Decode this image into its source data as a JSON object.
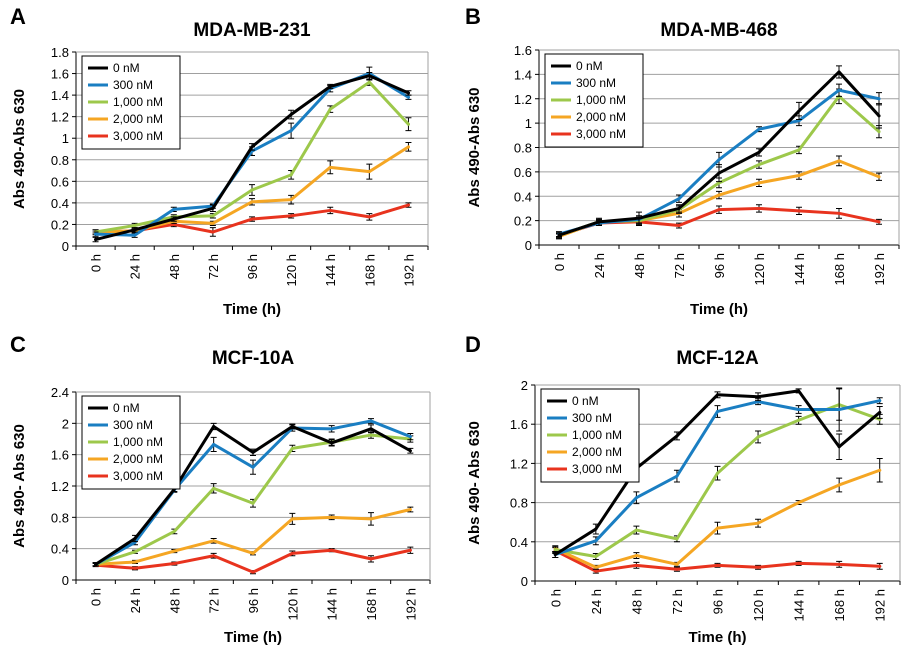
{
  "colors": {
    "0 nM": "#000000",
    "300 nM": "#1a7ec2",
    "1,000 nM": "#9dc84b",
    "2,000 nM": "#f5a623",
    "3,000 nM": "#e8331e"
  },
  "chart_data": [
    {
      "type": "line",
      "panel_letter": "A",
      "title": "MDA-MB-231",
      "xlabel": "Time (h)",
      "ylabel": "Abs 490-Abs 630",
      "categories": [
        "0 h",
        "24 h",
        "48 h",
        "72 h",
        "96 h",
        "120 h",
        "144 h",
        "168 h",
        "192 h"
      ],
      "ylim": [
        0,
        1.8
      ],
      "yticks": [
        0,
        0.2,
        0.4,
        0.6,
        0.8,
        1,
        1.2,
        1.4,
        1.6,
        1.8
      ],
      "ytick_labels": [
        "0",
        "0.2",
        "0.4",
        "0.6",
        "0.8",
        "1",
        "1.2",
        "1.4",
        "1.6",
        "1.8"
      ],
      "grid": true,
      "legend_position": "top-left",
      "series": [
        {
          "name": "0 nM",
          "values": [
            0.06,
            0.15,
            0.25,
            0.35,
            0.92,
            1.22,
            1.48,
            1.58,
            1.42
          ],
          "errors": [
            0.02,
            0.02,
            0.02,
            0.03,
            0.03,
            0.04,
            0.02,
            0.03,
            0.02
          ]
        },
        {
          "name": "300 nM",
          "values": [
            0.11,
            0.1,
            0.34,
            0.37,
            0.88,
            1.07,
            1.46,
            1.6,
            1.38
          ],
          "errors": [
            0.02,
            0.02,
            0.02,
            0.02,
            0.04,
            0.07,
            0.03,
            0.06,
            0.02
          ]
        },
        {
          "name": "1,000 nM",
          "values": [
            0.13,
            0.19,
            0.27,
            0.28,
            0.52,
            0.66,
            1.27,
            1.52,
            1.13
          ],
          "errors": [
            0.02,
            0.02,
            0.02,
            0.02,
            0.05,
            0.04,
            0.03,
            0.03,
            0.06
          ]
        },
        {
          "name": "2,000 nM",
          "values": [
            0.13,
            0.14,
            0.23,
            0.21,
            0.41,
            0.43,
            0.73,
            0.69,
            0.92
          ],
          "errors": [
            0.02,
            0.02,
            0.02,
            0.02,
            0.03,
            0.04,
            0.06,
            0.07,
            0.04
          ]
        },
        {
          "name": "3,000 nM",
          "values": [
            0.13,
            0.14,
            0.2,
            0.13,
            0.25,
            0.28,
            0.33,
            0.27,
            0.38
          ],
          "errors": [
            0.02,
            0.02,
            0.02,
            0.04,
            0.02,
            0.02,
            0.03,
            0.03,
            0.02
          ]
        }
      ]
    },
    {
      "type": "line",
      "panel_letter": "B",
      "title": "MDA-MB-468",
      "xlabel": "Time (h)",
      "ylabel": "Abs 490-Abs 630",
      "categories": [
        "0 h",
        "24 h",
        "48 h",
        "72 h",
        "96 h",
        "120 h",
        "144 h",
        "168 h",
        "192 h"
      ],
      "ylim": [
        0,
        1.6
      ],
      "yticks": [
        0,
        0.2,
        0.4,
        0.6,
        0.8,
        1,
        1.2,
        1.4,
        1.6
      ],
      "ytick_labels": [
        "0",
        "0.2",
        "0.4",
        "0.6",
        "0.8",
        "1",
        "1.2",
        "1.4",
        "1.6"
      ],
      "grid": true,
      "legend_position": "top-left",
      "series": [
        {
          "name": "0 nM",
          "values": [
            0.08,
            0.19,
            0.22,
            0.3,
            0.59,
            0.76,
            1.1,
            1.42,
            1.06
          ],
          "errors": [
            0.02,
            0.03,
            0.05,
            0.03,
            0.07,
            0.03,
            0.07,
            0.05,
            0.1
          ]
        },
        {
          "name": "300 nM",
          "values": [
            0.09,
            0.18,
            0.21,
            0.38,
            0.7,
            0.95,
            1.02,
            1.27,
            1.2
          ],
          "errors": [
            0.02,
            0.02,
            0.03,
            0.03,
            0.06,
            0.02,
            0.04,
            0.05,
            0.05
          ]
        },
        {
          "name": "1,000 nM",
          "values": [
            0.08,
            0.19,
            0.2,
            0.29,
            0.51,
            0.66,
            0.78,
            1.22,
            0.93
          ],
          "errors": [
            0.02,
            0.02,
            0.03,
            0.03,
            0.04,
            0.03,
            0.03,
            0.06,
            0.05
          ]
        },
        {
          "name": "2,000 nM",
          "values": [
            0.07,
            0.19,
            0.2,
            0.26,
            0.41,
            0.51,
            0.57,
            0.69,
            0.56
          ],
          "errors": [
            0.02,
            0.02,
            0.02,
            0.03,
            0.03,
            0.03,
            0.03,
            0.04,
            0.03
          ]
        },
        {
          "name": "3,000 nM",
          "values": [
            0.08,
            0.18,
            0.19,
            0.16,
            0.29,
            0.3,
            0.28,
            0.26,
            0.19
          ],
          "errors": [
            0.02,
            0.02,
            0.03,
            0.02,
            0.03,
            0.03,
            0.03,
            0.04,
            0.02
          ]
        }
      ]
    },
    {
      "type": "line",
      "panel_letter": "C",
      "title": "MCF-10A",
      "xlabel": "Time (h)",
      "ylabel": "Abs 490- Abs 630",
      "categories": [
        "0 h",
        "24 h",
        "48 h",
        "72 h",
        "96 h",
        "120 h",
        "144 h",
        "168 h",
        "192 h"
      ],
      "ylim": [
        0,
        2.4
      ],
      "yticks": [
        0,
        0.4,
        0.8,
        1.2,
        1.6,
        2,
        2.4
      ],
      "ytick_labels": [
        "0",
        "0.4",
        "0.8",
        "1.2",
        "1.6",
        "2",
        "2.4"
      ],
      "grid": true,
      "legend_position": "top-left",
      "series": [
        {
          "name": "0 nM",
          "values": [
            0.2,
            0.53,
            1.16,
            1.96,
            1.63,
            1.96,
            1.75,
            1.93,
            1.65
          ],
          "errors": [
            0.02,
            0.04,
            0.03,
            0.04,
            0.04,
            0.03,
            0.04,
            0.05,
            0.03
          ]
        },
        {
          "name": "300 nM",
          "values": [
            0.2,
            0.48,
            1.15,
            1.73,
            1.44,
            1.94,
            1.93,
            2.03,
            1.83
          ],
          "errors": [
            0.02,
            0.03,
            0.03,
            0.09,
            0.09,
            0.04,
            0.04,
            0.03,
            0.04
          ]
        },
        {
          "name": "1,000 nM",
          "values": [
            0.2,
            0.36,
            0.62,
            1.17,
            0.98,
            1.68,
            1.76,
            1.85,
            1.8
          ],
          "errors": [
            0.02,
            0.02,
            0.03,
            0.06,
            0.05,
            0.04,
            0.04,
            0.04,
            0.04
          ]
        },
        {
          "name": "2,000 nM",
          "values": [
            0.2,
            0.23,
            0.37,
            0.5,
            0.34,
            0.78,
            0.8,
            0.78,
            0.9
          ],
          "errors": [
            0.02,
            0.02,
            0.02,
            0.03,
            0.02,
            0.07,
            0.03,
            0.08,
            0.03
          ]
        },
        {
          "name": "3,000 nM",
          "values": [
            0.19,
            0.15,
            0.21,
            0.31,
            0.1,
            0.34,
            0.38,
            0.27,
            0.38
          ],
          "errors": [
            0.02,
            0.02,
            0.02,
            0.03,
            0.02,
            0.03,
            0.02,
            0.04,
            0.04
          ]
        }
      ]
    },
    {
      "type": "line",
      "panel_letter": "D",
      "title": "MCF-12A",
      "xlabel": "Time (h)",
      "ylabel": "Abs 490- Abs 630",
      "categories": [
        "0 h",
        "24 h",
        "48 h",
        "72 h",
        "96 h",
        "120 h",
        "144 h",
        "168 h",
        "192 h"
      ],
      "ylim": [
        0,
        2
      ],
      "yticks": [
        0,
        0.4,
        0.8,
        1.2,
        1.6,
        2
      ],
      "ytick_labels": [
        "0",
        "0.4",
        "0.8",
        "1.2",
        "1.6",
        "2"
      ],
      "grid": true,
      "legend_position": "top-left",
      "series": [
        {
          "name": "0 nM",
          "values": [
            0.27,
            0.53,
            1.15,
            1.48,
            1.9,
            1.88,
            1.94,
            1.37,
            1.72
          ],
          "errors": [
            0.03,
            0.05,
            0.08,
            0.04,
            0.03,
            0.04,
            0.02,
            0.13,
            0.06
          ]
        },
        {
          "name": "300 nM",
          "values": [
            0.27,
            0.41,
            0.85,
            1.07,
            1.73,
            1.83,
            1.75,
            1.75,
            1.84
          ],
          "errors": [
            0.03,
            0.04,
            0.06,
            0.06,
            0.06,
            0.03,
            0.04,
            0.22,
            0.03
          ]
        },
        {
          "name": "1,000 nM",
          "values": [
            0.32,
            0.25,
            0.52,
            0.43,
            1.1,
            1.47,
            1.64,
            1.8,
            1.65
          ],
          "errors": [
            0.03,
            0.03,
            0.04,
            0.03,
            0.07,
            0.06,
            0.04,
            0.16,
            0.05
          ]
        },
        {
          "name": "2,000 nM",
          "values": [
            0.33,
            0.14,
            0.26,
            0.17,
            0.54,
            0.59,
            0.8,
            0.98,
            1.13
          ],
          "errors": [
            0.03,
            0.02,
            0.03,
            0.02,
            0.06,
            0.04,
            0.02,
            0.07,
            0.12
          ]
        },
        {
          "name": "3,000 nM",
          "values": [
            0.31,
            0.1,
            0.16,
            0.12,
            0.16,
            0.14,
            0.18,
            0.17,
            0.15
          ],
          "errors": [
            0.03,
            0.02,
            0.03,
            0.02,
            0.02,
            0.02,
            0.02,
            0.03,
            0.03
          ]
        }
      ]
    }
  ]
}
